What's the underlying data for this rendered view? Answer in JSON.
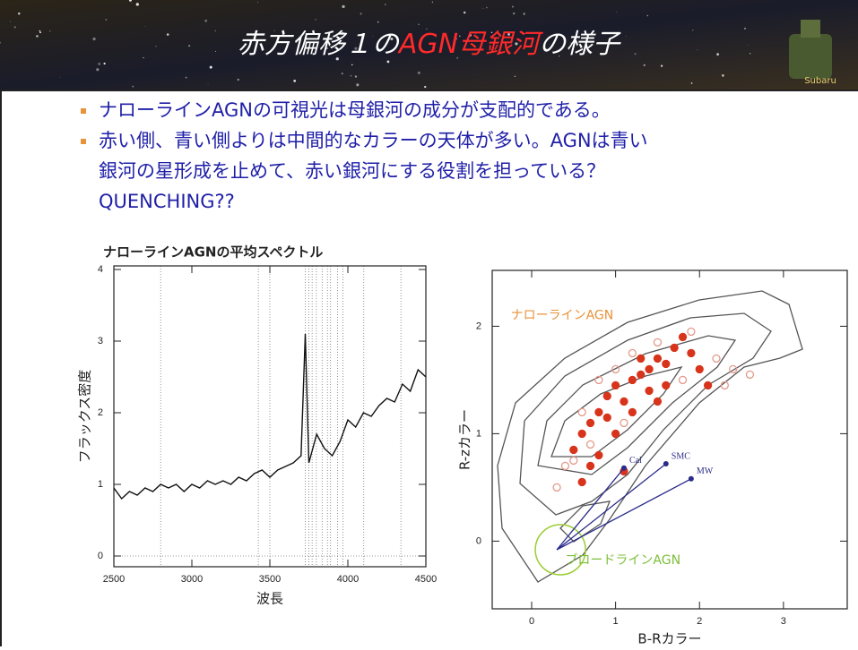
{
  "header": {
    "title": [
      {
        "text": "赤方偏移１の",
        "color": "#ffffff"
      },
      {
        "text": "AGN母銀河",
        "color": "#ff2a2a"
      },
      {
        "text": "の様子",
        "color": "#ffffff"
      }
    ],
    "logo_label": "Subaru"
  },
  "bullets": [
    [
      "ナローラインAGNの可視光は母銀河の成分が支配的である。"
    ],
    [
      "赤い側、青い側よりは中間的なカラーの天体が多い。AGNは青い",
      "銀河の星形成を止めて、赤い銀河にする役割を担っている？",
      "QUENCHING??"
    ]
  ],
  "chart_data": [
    {
      "type": "line",
      "title": "ナローラインAGNの平均スペクトル",
      "x_label": "波長",
      "y_label": "フラックス密度",
      "x": [
        2500,
        2550,
        2600,
        2650,
        2700,
        2750,
        2800,
        2850,
        2900,
        2950,
        3000,
        3050,
        3100,
        3150,
        3200,
        3250,
        3300,
        3350,
        3400,
        3450,
        3500,
        3550,
        3600,
        3650,
        3700,
        3727,
        3750,
        3800,
        3850,
        3900,
        3950,
        4000,
        4050,
        4100,
        4150,
        4200,
        4250,
        4300,
        4350,
        4400,
        4450,
        4500
      ],
      "values": [
        0.95,
        0.8,
        0.9,
        0.85,
        0.95,
        0.9,
        1.0,
        0.95,
        1.0,
        0.9,
        1.0,
        0.95,
        1.05,
        1.0,
        1.05,
        1.0,
        1.1,
        1.05,
        1.15,
        1.2,
        1.1,
        1.2,
        1.25,
        1.3,
        1.4,
        3.1,
        1.3,
        1.7,
        1.5,
        1.4,
        1.6,
        1.9,
        1.8,
        2.0,
        1.95,
        2.1,
        2.2,
        2.15,
        2.4,
        2.3,
        2.6,
        2.5
      ],
      "color": "#111111",
      "xlim": [
        2500,
        4500
      ],
      "ylim": [
        -0.15,
        4.05
      ],
      "xticks": [
        2500,
        3000,
        3500,
        4000,
        4500
      ],
      "yticks": [
        0,
        1,
        2,
        3,
        4
      ],
      "vlines": [
        2800,
        3426,
        3500,
        3727,
        3750,
        3771,
        3798,
        3835,
        3869,
        3889,
        3934,
        3969,
        4102,
        4340
      ],
      "hlines": [
        0
      ]
    },
    {
      "type": "scatter",
      "x_label": "B-Rカラー",
      "y_label": "R-zカラー",
      "xlim": [
        -0.47,
        3.76
      ],
      "ylim": [
        -0.63,
        2.52
      ],
      "xticks": [
        0,
        1,
        2,
        3
      ],
      "yticks": [
        0,
        1,
        2
      ],
      "series": [
        {
          "color": "#d8341c",
          "fill": true,
          "x": [
            0.5,
            0.6,
            0.7,
            0.8,
            0.9,
            1.0,
            1.1,
            1.2,
            1.3,
            1.4,
            1.5,
            1.6,
            1.7,
            1.8,
            1.9,
            1.2,
            1.0,
            0.8,
            1.5,
            2.0,
            2.1,
            0.7,
            1.1,
            0.6,
            1.6,
            1.3,
            0.9,
            1.4
          ],
          "values": [
            0.85,
            1.0,
            1.1,
            1.2,
            1.35,
            1.45,
            1.3,
            1.5,
            1.55,
            1.6,
            1.7,
            1.65,
            1.8,
            1.9,
            1.75,
            1.2,
            1.0,
            0.8,
            1.3,
            1.6,
            1.45,
            0.7,
            0.65,
            0.55,
            1.45,
            1.7,
            1.15,
            1.4
          ]
        },
        {
          "color": "#e39a8a",
          "fill": false,
          "x": [
            0.4,
            0.5,
            0.6,
            0.8,
            1.0,
            1.2,
            1.5,
            2.2,
            2.4,
            2.6,
            1.8,
            0.7,
            1.1,
            1.9,
            0.3,
            2.3
          ],
          "values": [
            0.7,
            0.75,
            1.2,
            1.5,
            1.6,
            1.75,
            1.85,
            1.7,
            1.6,
            1.55,
            1.5,
            0.9,
            1.1,
            1.95,
            0.5,
            1.45
          ]
        }
      ],
      "arrow_origin": [
        0.3,
        -0.08
      ],
      "arrows": [
        {
          "label": "Cal",
          "x": 1.1,
          "y": 0.68
        },
        {
          "label": "SMC",
          "x": 1.6,
          "y": 0.72
        },
        {
          "label": "MW",
          "x": 1.9,
          "y": 0.58
        }
      ],
      "annotations": [
        {
          "text": "ナローラインAGN",
          "x": -0.25,
          "y": 2.1,
          "color": "#e8923a"
        },
        {
          "text": "ブロードラインAGN",
          "x": 0.4,
          "y": -0.18,
          "color": "#7cbf3a"
        }
      ]
    }
  ]
}
